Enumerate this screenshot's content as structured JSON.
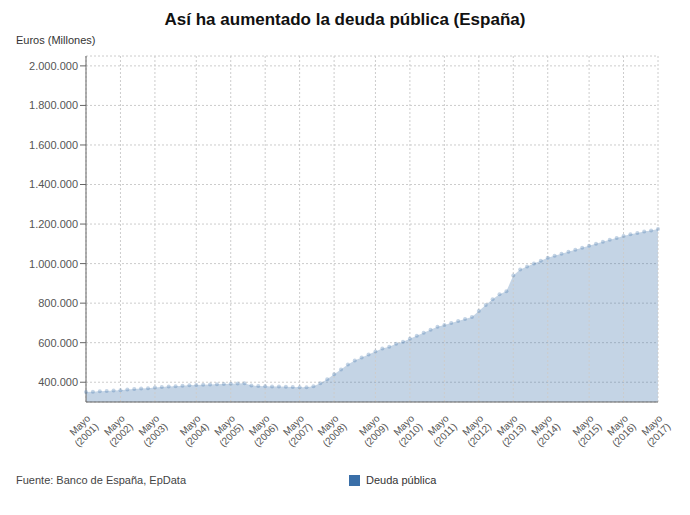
{
  "chart_data": {
    "type": "area",
    "title": "Así ha aumentado la deuda pública (España)",
    "ylabel": "Euros (Millones)",
    "annotations": [
      "Fuente: Banco de España, EpData"
    ],
    "categories": [
      "Mayo\n(2001)",
      null,
      null,
      null,
      null,
      "Mayo\n(2002)",
      null,
      null,
      null,
      null,
      "Mayo\n(2003)",
      null,
      null,
      null,
      null,
      null,
      "Mayo\n(2004)",
      null,
      null,
      null,
      null,
      "Mayo\n(2005)",
      null,
      null,
      null,
      null,
      "Mayo\n(2006)",
      null,
      null,
      null,
      null,
      "Mayo\n(2007)",
      null,
      null,
      null,
      null,
      "Mayo\n(2008)",
      null,
      null,
      null,
      null,
      null,
      "Mayo\n(2009)",
      null,
      null,
      null,
      null,
      "Mayo\n(2010)",
      null,
      null,
      null,
      null,
      "Mayo\n(2011)",
      null,
      null,
      null,
      null,
      "Mayo\n(2012)",
      null,
      null,
      null,
      null,
      "Mayo\n(2013)",
      null,
      null,
      null,
      null,
      "Mayo\n(2014)",
      null,
      null,
      null,
      null,
      null,
      "Mayo\n(2015)",
      null,
      null,
      null,
      null,
      "Mayo\n(2016)",
      null,
      null,
      null,
      null,
      "Mayo\n(2017)"
    ],
    "series": [
      {
        "name": "Deuda pública",
        "color": "#3a6fa8",
        "marker": "circle",
        "values": [
          350000,
          352000,
          354000,
          356000,
          358000,
          360000,
          363000,
          366000,
          368000,
          370000,
          373000,
          376000,
          378000,
          380000,
          382000,
          385000,
          386000,
          387000,
          388000,
          390000,
          391000,
          392000,
          393000,
          395000,
          383000,
          381000,
          380000,
          379000,
          378000,
          377000,
          376000,
          375000,
          374000,
          380000,
          395000,
          415000,
          440000,
          465000,
          490000,
          510000,
          525000,
          540000,
          555000,
          570000,
          580000,
          595000,
          605000,
          620000,
          635000,
          650000,
          665000,
          680000,
          690000,
          700000,
          710000,
          720000,
          730000,
          760000,
          790000,
          820000,
          845000,
          860000,
          940000,
          970000,
          985000,
          1000000,
          1015000,
          1030000,
          1040000,
          1050000,
          1060000,
          1070000,
          1080000,
          1090000,
          1100000,
          1110000,
          1120000,
          1130000,
          1140000,
          1148000,
          1155000,
          1162000,
          1168000,
          1175000
        ]
      }
    ],
    "ylim": [
      300000,
      2050000
    ],
    "yticks": [
      {
        "value": 400000,
        "label": "400.000"
      },
      {
        "value": 600000,
        "label": "600.000"
      },
      {
        "value": 800000,
        "label": "800.000"
      },
      {
        "value": 1000000,
        "label": "1.000.000"
      },
      {
        "value": 1200000,
        "label": "1.200.000"
      },
      {
        "value": 1400000,
        "label": "1.400.000"
      },
      {
        "value": 1600000,
        "label": "1.600.000"
      },
      {
        "value": 1800000,
        "label": "1.800.000"
      },
      {
        "value": 2000000,
        "label": "2.000.000"
      }
    ],
    "grid": true,
    "legend": "bottom"
  }
}
